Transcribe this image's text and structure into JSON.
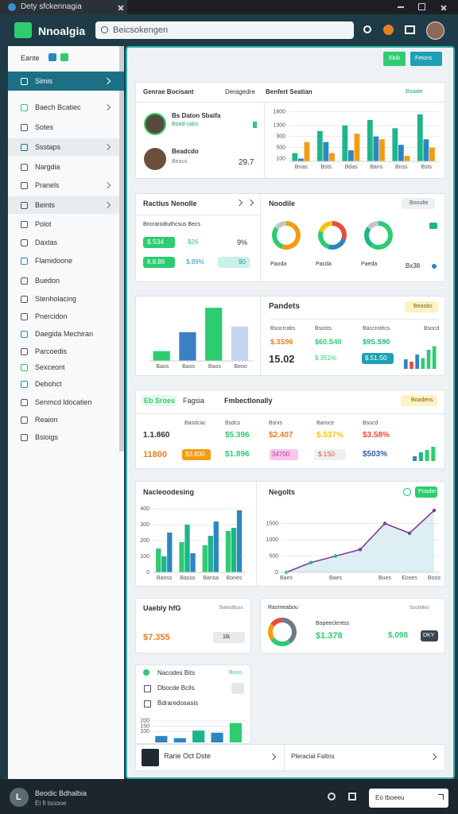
{
  "browser": {
    "tab": "Dety sfckennagia"
  },
  "header": {
    "logo": "Nnoalgia",
    "search": "Beicsokengen"
  },
  "sidebar": {
    "title": "Eante",
    "items": [
      "Simis",
      "Baech Bcatiec",
      "Sotes",
      "Ssstaps",
      "Nargdia",
      "Pranels",
      "Beints",
      "Polot",
      "Daxtas",
      "Flamidoone",
      "Buedon",
      "Stenholacing",
      "Pnercidon",
      "Daegida Mechiran",
      "Parcoedis",
      "Sexceont",
      "Debohct",
      "Senmcd ldocatien",
      "Reaion",
      "Bsioigs"
    ]
  },
  "toolbar": {
    "buttons": [
      "Ebib",
      "Fetons"
    ]
  },
  "overview": {
    "columns": [
      "Genrae Bocisant",
      "Deragedre",
      "Benfert Seatian"
    ],
    "link": "Bsoate",
    "people": [
      {
        "name": "Bs Daton Sbaifa",
        "detail": "Boad cabs"
      },
      {
        "name": "Beadcdo",
        "detail": "Beacs"
      }
    ],
    "total": "29.7",
    "chart": {
      "type": "bar",
      "categories": [
        "Bnas",
        "Bsts",
        "Bdas",
        "Bans",
        "Bnss",
        "Bsts"
      ],
      "series": [
        {
          "color": "#1fb58a",
          "values": [
            300,
            1100,
            1300,
            1500,
            1200,
            1700
          ]
        },
        {
          "color": "#2e86c1",
          "values": [
            100,
            700,
            400,
            900,
            600,
            800
          ]
        },
        {
          "color": "#f39c12",
          "values": [
            700,
            300,
            1000,
            800,
            200,
            500
          ]
        }
      ],
      "ylim": [
        0,
        1900
      ],
      "yticks": [
        100,
        500,
        900,
        1300,
        1800
      ]
    }
  },
  "notices": {
    "title": "Ractius Nenolle",
    "caption": "Bncrarodtuthcsus Becs",
    "rows": [
      [
        "$.S34",
        "$26",
        "9%"
      ],
      [
        "8.8.86",
        "$.89%",
        "90"
      ]
    ]
  },
  "donuts": {
    "title": "Noodile",
    "badge": "Booulie",
    "footer": "Bx38",
    "charts": [
      {
        "label": "Paoda",
        "values": [
          55,
          30,
          15
        ],
        "colors": [
          "#f39c12",
          "#2ecc71",
          "#bfc7cc"
        ]
      },
      {
        "label": "Pacda",
        "values": [
          30,
          25,
          25,
          20
        ],
        "colors": [
          "#e74c3c",
          "#2e86c1",
          "#2ecc71",
          "#f1c40f"
        ]
      },
      {
        "label": "Paeda",
        "values": [
          60,
          25,
          15
        ],
        "colors": [
          "#2ecc71",
          "#1fb58a",
          "#bfc7cc"
        ]
      }
    ]
  },
  "bars4": {
    "type": "bar",
    "categories": [
      "Baos",
      "Baos",
      "Baos",
      "Beoo"
    ],
    "values": [
      12,
      35,
      65,
      42
    ],
    "colors": [
      "#2ecc71",
      "#3b7fc4",
      "#2ecc71",
      "#c7d6f0"
    ],
    "ylim": [
      0,
      70
    ]
  },
  "products": {
    "title": "Pandets",
    "badge": "Beoobs",
    "columns": [
      "Bsocrratis",
      "Bsosts",
      "Baccrotitcs",
      "Bsocd"
    ],
    "values": [
      "$.3S96",
      "$60.S40",
      "$9S.S90"
    ],
    "total": "15.02",
    "subs": [
      "$.351%",
      "$.51.S0"
    ],
    "mini": {
      "type": "bar",
      "values": [
        40,
        30,
        60,
        45,
        80,
        95
      ],
      "colors": [
        "#2e86c1",
        "#e74c3c",
        "#2e86c1",
        "#2ecc71",
        "#2ecc71",
        "#2ecc71"
      ],
      "ylim": [
        0,
        100
      ]
    }
  },
  "performance": {
    "tabs": [
      "Eb Sroes",
      "Fagsia",
      "Fmbectlonally"
    ],
    "badge": "Boadens",
    "columns": [
      "Basdcac",
      "Bsdcs",
      "Bsnis",
      "Baroce",
      "Bsocd"
    ],
    "rows": [
      [
        "1.1.860",
        "$5.396",
        "$2.407",
        "$.537%",
        "$3.58%"
      ],
      [
        "11800",
        "$3.800",
        "$1.896",
        "34700",
        "$.1S0",
        "$503%"
      ]
    ],
    "mini": {
      "type": "bar",
      "values": [
        30,
        55,
        70,
        90
      ],
      "colors": [
        "#2e86c1",
        "#1fb58a",
        "#2ecc71",
        "#2ecc71"
      ],
      "ylim": [
        0,
        100
      ]
    }
  },
  "sales": {
    "type": "bar",
    "title": "Nacleoodesing",
    "categories": [
      "Banss",
      "Basss",
      "Bansa",
      "Bones"
    ],
    "series": [
      {
        "color": "#2ecc71",
        "values": [
          150,
          190,
          170,
          260
        ]
      },
      {
        "color": "#1fb58a",
        "values": [
          100,
          300,
          230,
          280
        ]
      },
      {
        "color": "#2e86c1",
        "values": [
          250,
          120,
          320,
          390
        ]
      }
    ],
    "ylim": [
      0,
      420
    ],
    "yticks": [
      0,
      100,
      200,
      300,
      400
    ]
  },
  "trend": {
    "type": "line",
    "title": "Negolts",
    "badge": "Poader",
    "color": "#7d3c98",
    "categories": [
      "Baes",
      null,
      "Baes",
      null,
      "Bues",
      "Eoses",
      "Boos"
    ],
    "values": [
      0,
      300,
      500,
      700,
      1500,
      1200,
      1900
    ],
    "ylim": [
      0,
      2000
    ],
    "yticks": [
      0,
      500,
      1000,
      1500
    ]
  },
  "weekly": {
    "title": "Uaebly hfG",
    "sub": "Bahodtiuss",
    "value": "$7.355",
    "pill": "1lk"
  },
  "summary": {
    "title": "Rasmeabou",
    "sub": "Soontiles",
    "caption": "Bopeeclentss",
    "value": "$1.378",
    "value2": "$.098",
    "tag": "DKY",
    "donut": {
      "values": [
        40,
        25,
        20,
        15
      ],
      "colors": [
        "#6c7a89",
        "#2ecc71",
        "#f39c12",
        "#e74c3c"
      ]
    }
  },
  "list": {
    "title": "Nacodes Bits",
    "tag": "Bnos",
    "items": [
      "Dbocde Bcils",
      "Bdraredosasis"
    ],
    "chart": {
      "type": "bar",
      "values": [
        60,
        40,
        110,
        90,
        180
      ],
      "colors": [
        "#2e86c1",
        "#2e86c1",
        "#1fb58a",
        "#2e86c1",
        "#2ecc71"
      ],
      "ylim": [
        0,
        250
      ],
      "yticks": [
        100,
        150,
        200
      ]
    }
  },
  "footer_tabs": [
    "Rarie Oct Dste",
    "Pleracial Faltns"
  ],
  "bottom": {
    "avatar": "L",
    "title": "Beodic Bdhalbia",
    "sub": "Ei fi tsoooe",
    "button": "Eo tboeeu"
  }
}
